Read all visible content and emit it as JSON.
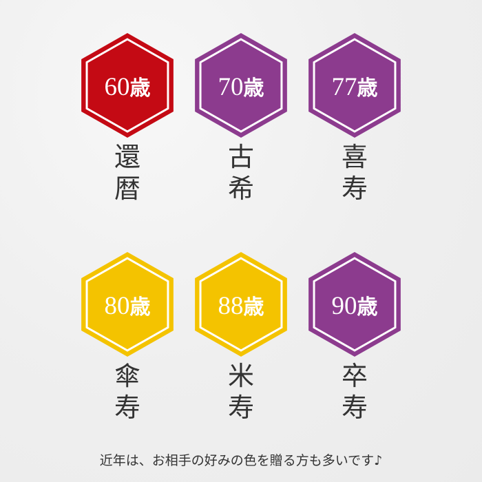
{
  "colors": {
    "red": "#c40a14",
    "purple": "#8c3b8e",
    "yellow": "#f4c300"
  },
  "items": [
    {
      "age": "60",
      "unit": "歳",
      "name1": "還",
      "name2": "暦",
      "color": "#c40a14"
    },
    {
      "age": "70",
      "unit": "歳",
      "name1": "古",
      "name2": "希",
      "color": "#8c3b8e"
    },
    {
      "age": "77",
      "unit": "歳",
      "name1": "喜",
      "name2": "寿",
      "color": "#8c3b8e"
    },
    {
      "age": "80",
      "unit": "歳",
      "name1": "傘",
      "name2": "寿",
      "color": "#f4c300"
    },
    {
      "age": "88",
      "unit": "歳",
      "name1": "米",
      "name2": "寿",
      "color": "#f4c300"
    },
    {
      "age": "90",
      "unit": "歳",
      "name1": "卒",
      "name2": "寿",
      "color": "#8c3b8e"
    }
  ],
  "footer": "近年は、お相手の好みの色を贈る方も多いです♪"
}
